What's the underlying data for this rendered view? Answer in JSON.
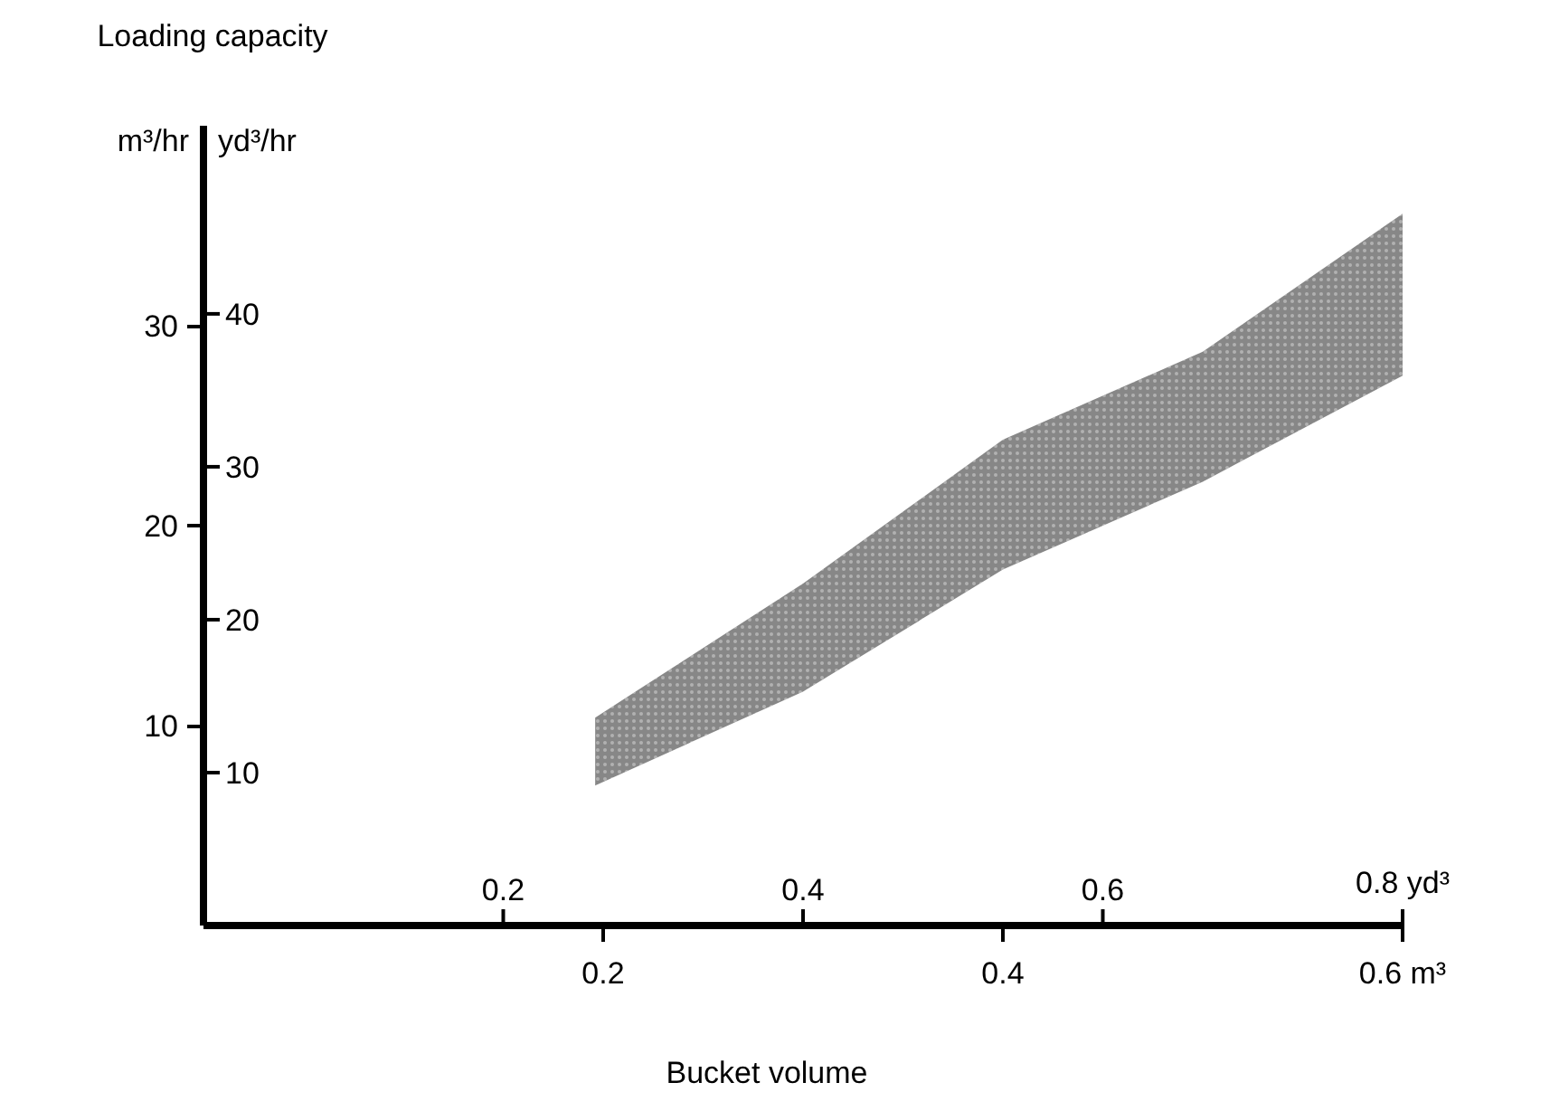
{
  "chart_data": {
    "type": "area",
    "title": "Loading capacity",
    "xlabel": "Bucket volume",
    "ylabel": "m³/hr",
    "y2label": "yd³/hr",
    "x": [
      0.196,
      0.3,
      0.4,
      0.5,
      0.6
    ],
    "series": [
      {
        "color": "#7a7a7a",
        "values": [
          null,
          null,
          null,
          null,
          null
        ],
        "upper": [
          10.4,
          17.1,
          24.3,
          28.7,
          35.6
        ],
        "lower": [
          7.0,
          11.7,
          17.8,
          22.2,
          27.5
        ]
      }
    ],
    "xlim": [
      0,
      0.6
    ],
    "xticks": [
      0.2,
      0.4,
      {
        "value": 0.6,
        "label": "0.6 m³"
      }
    ],
    "x2lim": [
      0,
      0.8
    ],
    "x2ticks": [
      0.2,
      0.4,
      0.6,
      {
        "value": 0.8,
        "label": "0.8 yd³"
      }
    ],
    "ylim": [
      0,
      40
    ],
    "yticks": [
      10,
      20,
      30
    ],
    "y2lim": [
      0,
      52.3
    ],
    "y2ticks": [
      10,
      20,
      30,
      40
    ],
    "grid": false
  }
}
